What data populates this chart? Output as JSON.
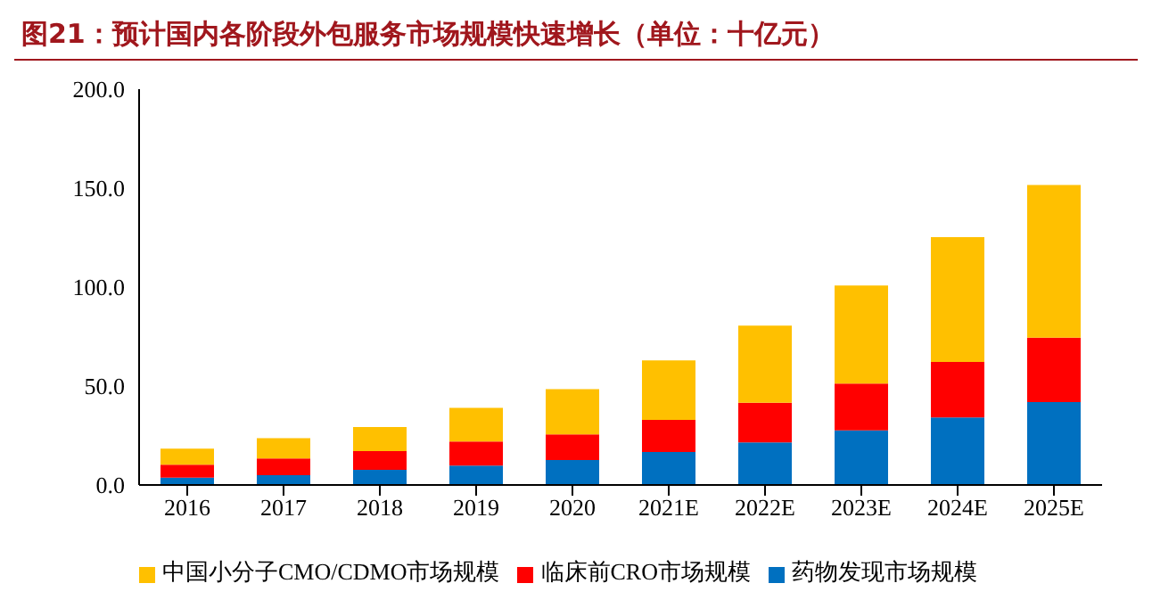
{
  "chart_data": {
    "type": "bar",
    "title": "图21：预计国内各阶段外包服务市场规模快速增长（单位：十亿元）",
    "categories": [
      "2016",
      "2017",
      "2018",
      "2019",
      "2020",
      "2021E",
      "2022E",
      "2023E",
      "2024E",
      "2025E"
    ],
    "stacked": true,
    "ylim": [
      0,
      200
    ],
    "yticks": [
      {
        "value": 0,
        "label": "0.0"
      },
      {
        "value": 50,
        "label": "50.0"
      },
      {
        "value": 100,
        "label": "100.0"
      },
      {
        "value": 150,
        "label": "150.0"
      },
      {
        "value": 200,
        "label": "200.0"
      }
    ],
    "grid": false,
    "legend": "bottom",
    "series": [
      {
        "name": "药物发现市场规模",
        "color": "#0070c0",
        "values": [
          3.7,
          4.9,
          7.7,
          9.8,
          12.6,
          16.7,
          21.5,
          27.6,
          34.1,
          41.9
        ]
      },
      {
        "name": "临床前CRO市场规模",
        "color": "#ff0000",
        "values": [
          6.5,
          8.5,
          9.4,
          12.2,
          13,
          16.2,
          20,
          23.6,
          28.1,
          32.5
        ]
      },
      {
        "name": "中国小分子CMO/CDMO市场规模",
        "color": "#ffc000",
        "values": [
          8.1,
          10.2,
          12.2,
          17,
          22.8,
          30.1,
          39,
          49.6,
          63,
          77.2
        ]
      }
    ]
  }
}
